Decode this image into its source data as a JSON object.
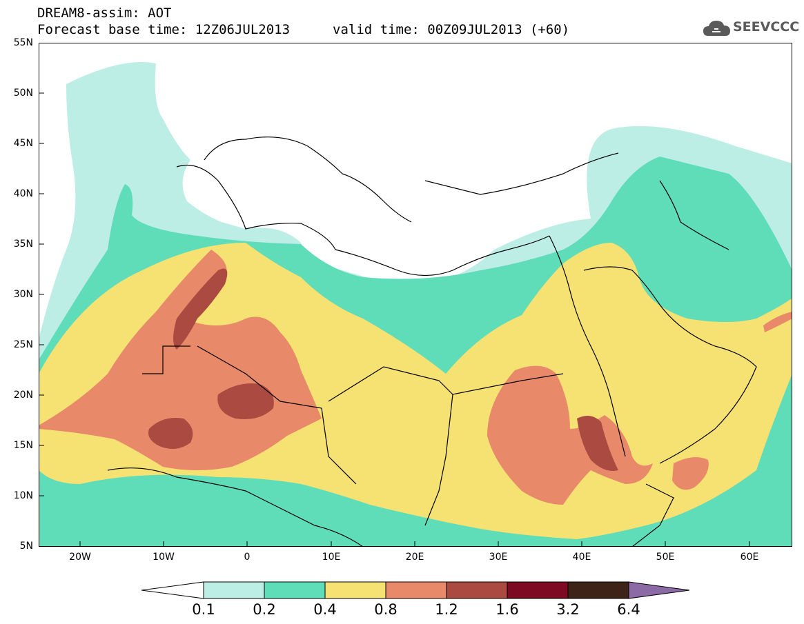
{
  "header": {
    "title": "DREAM8-assim: AOT",
    "base_time": "Forecast base time: 12Z06JUL2013",
    "valid_time": "valid time: 00Z09JUL2013 (+60)",
    "logo_text": "SEEVCCC",
    "logo_icon": "cloud-icon"
  },
  "map": {
    "region": "North Africa, Mediterranean and Middle East",
    "lat_range": [
      5,
      55
    ],
    "lon_range": [
      -25,
      65
    ],
    "lat_labels": [
      "55N",
      "50N",
      "45N",
      "40N",
      "35N",
      "30N",
      "25N",
      "20N",
      "15N",
      "10N",
      "5N"
    ],
    "lon_labels": [
      "20W",
      "10W",
      "0",
      "10E",
      "20E",
      "30E",
      "40E",
      "50E",
      "60E"
    ],
    "coastline_color": "#000000"
  },
  "colorbar": {
    "levels": [
      "0.1",
      "0.2",
      "0.4",
      "0.8",
      "1.2",
      "1.6",
      "3.2",
      "6.4"
    ],
    "colors": [
      "#ffffff",
      "#bdeee6",
      "#5fdcb8",
      "#f6e173",
      "#e88a6a",
      "#aa4a40",
      "#7b0a22",
      "#3d2318",
      "#8c6aa6"
    ]
  }
}
